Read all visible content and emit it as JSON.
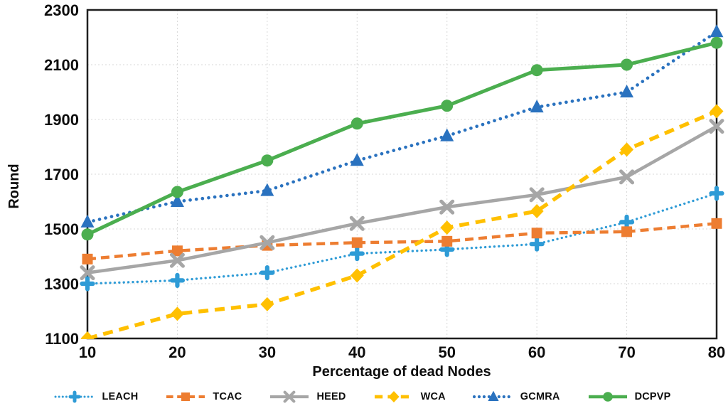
{
  "chart_data": {
    "type": "line",
    "title": "",
    "xlabel": "Percentage of dead Nodes",
    "ylabel": "Round",
    "x": [
      10,
      20,
      30,
      40,
      50,
      60,
      70,
      80
    ],
    "xticks": [
      10,
      20,
      30,
      40,
      50,
      60,
      70,
      80
    ],
    "yticks": [
      1100,
      1300,
      1500,
      1700,
      1900,
      2100,
      2300
    ],
    "xlim": [
      10,
      80
    ],
    "ylim": [
      1100,
      2300
    ],
    "grid": true,
    "legend_position": "bottom",
    "axis_color": "#1f1f1f",
    "gridline_color": "#d8d8d8",
    "text_color": "#0d0d0d",
    "series": [
      {
        "name": "LEACH",
        "color": "#2E9BD6",
        "line_style": "dotted-small",
        "marker": "plus",
        "values": [
          1300,
          1312,
          1340,
          1410,
          1425,
          1445,
          1525,
          1630
        ]
      },
      {
        "name": "TCAC",
        "color": "#ED7D31",
        "line_style": "dashed",
        "marker": "square",
        "values": [
          1390,
          1420,
          1440,
          1450,
          1455,
          1485,
          1490,
          1520
        ]
      },
      {
        "name": "HEED",
        "color": "#A6A6A6",
        "line_style": "solid",
        "marker": "x",
        "values": [
          1340,
          1385,
          1450,
          1520,
          1580,
          1625,
          1690,
          1875
        ]
      },
      {
        "name": "WCA",
        "color": "#FFC000",
        "line_style": "dashed-long",
        "marker": "diamond",
        "values": [
          1100,
          1190,
          1225,
          1330,
          1505,
          1565,
          1790,
          1930
        ]
      },
      {
        "name": "GCMRA",
        "color": "#2A72BF",
        "line_style": "dotted",
        "marker": "triangle",
        "values": [
          1525,
          1600,
          1640,
          1750,
          1840,
          1945,
          2000,
          2220
        ]
      },
      {
        "name": "DCPVP",
        "color": "#4BAE4F",
        "line_style": "solid-thick",
        "marker": "circle",
        "values": [
          1480,
          1635,
          1750,
          1885,
          1950,
          2080,
          2100,
          2180
        ]
      }
    ]
  }
}
